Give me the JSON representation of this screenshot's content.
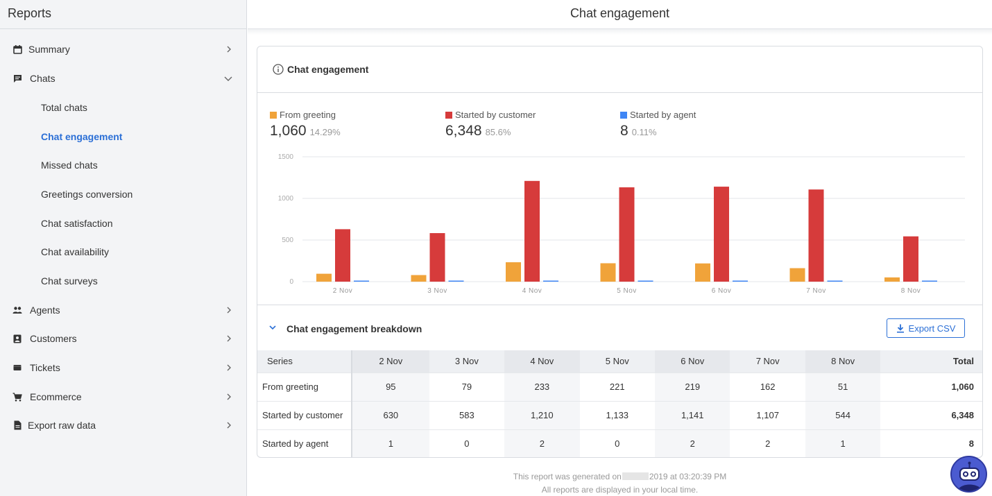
{
  "sidebar": {
    "title": "Reports",
    "items": [
      {
        "label": "Summary",
        "icon": "calendar-icon",
        "expanded": false
      },
      {
        "label": "Chats",
        "icon": "chat-icon",
        "expanded": true
      },
      {
        "label": "Agents",
        "icon": "people-icon",
        "expanded": false
      },
      {
        "label": "Customers",
        "icon": "contact-card-icon",
        "expanded": false
      },
      {
        "label": "Tickets",
        "icon": "ticket-icon",
        "expanded": false
      },
      {
        "label": "Ecommerce",
        "icon": "cart-icon",
        "expanded": false
      },
      {
        "label": "Export raw data",
        "icon": "document-icon",
        "expanded": false
      }
    ],
    "chats_sub": [
      {
        "label": "Total chats"
      },
      {
        "label": "Chat engagement",
        "active": true
      },
      {
        "label": "Missed chats"
      },
      {
        "label": "Greetings conversion"
      },
      {
        "label": "Chat satisfaction"
      },
      {
        "label": "Chat availability"
      },
      {
        "label": "Chat surveys"
      }
    ]
  },
  "header": {
    "title": "Chat engagement"
  },
  "card": {
    "title": "Chat engagement",
    "breakdown_title": "Chat engagement breakdown",
    "export_label": "Export CSV"
  },
  "legend": [
    {
      "name": "From greeting",
      "total": "1,060",
      "pct": "14.29%",
      "color": "#f0a33a"
    },
    {
      "name": "Started by customer",
      "total": "6,348",
      "pct": "85.6%",
      "color": "#d63b3b"
    },
    {
      "name": "Started by agent",
      "total": "8",
      "pct": "0.11%",
      "color": "#3f86f5"
    }
  ],
  "chart_data": {
    "type": "bar",
    "categories": [
      "2 Nov",
      "3 Nov",
      "4 Nov",
      "5 Nov",
      "6 Nov",
      "7 Nov",
      "8 Nov"
    ],
    "series": [
      {
        "name": "From greeting",
        "color": "#f0a33a",
        "values": [
          95,
          79,
          233,
          221,
          219,
          162,
          51
        ]
      },
      {
        "name": "Started by customer",
        "color": "#d63b3b",
        "values": [
          630,
          583,
          1210,
          1133,
          1141,
          1107,
          544
        ]
      },
      {
        "name": "Started by agent",
        "color": "#3f86f5",
        "values": [
          1,
          0,
          2,
          0,
          2,
          2,
          1
        ]
      }
    ],
    "yticks": [
      "0",
      "500",
      "1000",
      "1500"
    ],
    "ylim": [
      0,
      1500
    ],
    "grid": true
  },
  "table": {
    "headers": [
      "Series",
      "2 Nov",
      "3 Nov",
      "4 Nov",
      "5 Nov",
      "6 Nov",
      "7 Nov",
      "8 Nov",
      "Total"
    ],
    "rows": [
      [
        "From greeting",
        "95",
        "79",
        "233",
        "221",
        "219",
        "162",
        "51",
        "1,060"
      ],
      [
        "Started by customer",
        "630",
        "583",
        "1,210",
        "1,133",
        "1,141",
        "1,107",
        "544",
        "6,348"
      ],
      [
        "Started by agent",
        "1",
        "0",
        "2",
        "0",
        "2",
        "2",
        "1",
        "8"
      ]
    ]
  },
  "footer": {
    "line1_prefix": "This report was generated on",
    "line1_suffix": "2019 at 03:20:39 PM",
    "line2": "All reports are displayed in your local time."
  }
}
